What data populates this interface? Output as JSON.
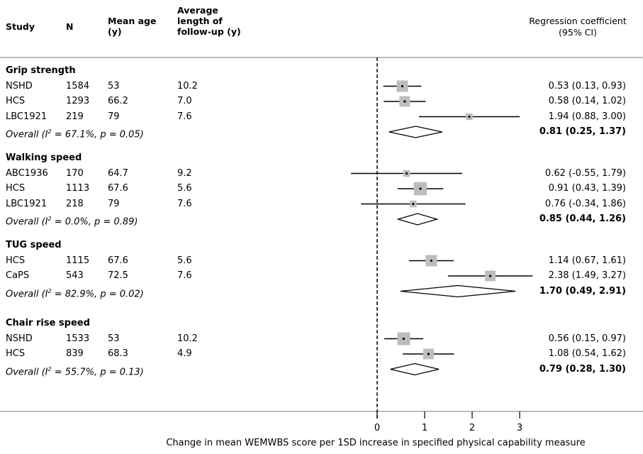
{
  "headers": {
    "study": "Study",
    "n": "N",
    "mean_age": [
      "Mean age",
      "(y)"
    ],
    "follow_up": [
      "Average",
      "length of",
      "follow-up (y)"
    ],
    "coef": [
      "Regression coefficient",
      "(95% CI)"
    ]
  },
  "groups": [
    {
      "title": "Grip strength",
      "rows": [
        {
          "study": "NSHD",
          "n": "1584",
          "age": "53",
          "followup": "10.2",
          "ci_text": "0.53 (0.13, 0.93)",
          "est": 0.53,
          "lo": 0.13,
          "hi": 0.93,
          "weight": 1.0
        },
        {
          "study": "HCS",
          "n": "1293",
          "age": "66.2",
          "followup": "7.0",
          "ci_text": "0.58 (0.14, 1.02)",
          "est": 0.58,
          "lo": 0.14,
          "hi": 1.02,
          "weight": 0.9
        },
        {
          "study": "LBC1921",
          "n": "219",
          "age": "79",
          "followup": "7.6",
          "ci_text": "1.94 (0.88, 3.00)",
          "est": 1.94,
          "lo": 0.88,
          "hi": 3.0,
          "weight": 0.35
        }
      ],
      "overall": {
        "prefix": "Overall  (I",
        "sup": "2",
        "suffix": " = 67.1%, p = 0.05)",
        "ci_text": "0.81 (0.25, 1.37)",
        "est": 0.81,
        "lo": 0.25,
        "hi": 1.37
      }
    },
    {
      "title": "Walking speed",
      "rows": [
        {
          "study": "ABC1936",
          "n": "170",
          "age": "64.7",
          "followup": "9.2",
          "ci_text": "0.62 (-0.55, 1.79)",
          "est": 0.62,
          "lo": -0.55,
          "hi": 1.79,
          "weight": 0.35
        },
        {
          "study": "HCS",
          "n": "1113",
          "age": "67.6",
          "followup": "5.6",
          "ci_text": "0.91 (0.43, 1.39)",
          "est": 0.91,
          "lo": 0.43,
          "hi": 1.39,
          "weight": 1.25
        },
        {
          "study": "LBC1921",
          "n": "218",
          "age": "79",
          "followup": "7.6",
          "ci_text": "0.76 (-0.34, 1.86)",
          "est": 0.76,
          "lo": -0.34,
          "hi": 1.86,
          "weight": 0.35
        }
      ],
      "overall": {
        "prefix": "Overall  (I",
        "sup": "2",
        "suffix": " = 0.0%, p = 0.89)",
        "ci_text": "0.85 (0.44, 1.26)",
        "est": 0.85,
        "lo": 0.44,
        "hi": 1.26
      }
    },
    {
      "title": "TUG speed",
      "rows": [
        {
          "study": "HCS",
          "n": "1115",
          "age": "67.6",
          "followup": "5.6",
          "ci_text": "1.14 (0.67, 1.61)",
          "est": 1.14,
          "lo": 0.67,
          "hi": 1.61,
          "weight": 1.0
        },
        {
          "study": "CaPS",
          "n": "543",
          "age": "72.5",
          "followup": "7.6",
          "ci_text": "2.38 (1.49, 3.27)",
          "est": 2.38,
          "lo": 1.49,
          "hi": 3.27,
          "weight": 0.9
        }
      ],
      "overall": {
        "prefix": "Overall  (I",
        "sup": "2",
        "suffix": " = 82.9%, p = 0.02)",
        "ci_text": "1.70 (0.49, 2.91)",
        "est": 1.7,
        "lo": 0.49,
        "hi": 2.91
      }
    },
    {
      "title": "Chair rise speed",
      "rows": [
        {
          "study": "NSHD",
          "n": "1533",
          "age": "53",
          "followup": "10.2",
          "ci_text": "0.56 (0.15, 0.97)",
          "est": 0.56,
          "lo": 0.15,
          "hi": 0.97,
          "weight": 1.2
        },
        {
          "study": "HCS",
          "n": "839",
          "age": "68.3",
          "followup": "4.9",
          "ci_text": "1.08 (0.54, 1.62)",
          "est": 1.08,
          "lo": 0.54,
          "hi": 1.62,
          "weight": 0.9
        }
      ],
      "overall": {
        "prefix": "Overall  (I",
        "sup": "2",
        "suffix": " = 55.7%, p = 0.13)",
        "ci_text": "0.79 (0.28, 1.30)",
        "est": 0.79,
        "lo": 0.28,
        "hi": 1.3
      }
    }
  ],
  "chart_data": {
    "type": "forest",
    "x_ticks": [
      0,
      1,
      2,
      3
    ],
    "xlim": [
      -0.55,
      3.27
    ],
    "xlabel": "Change in mean WEMWBS score per 1SD increase in specified physical capability measure",
    "reference_line": 0,
    "colors": {
      "box": "#bdbdbd",
      "line": "#000000",
      "axis": "#000000"
    }
  }
}
